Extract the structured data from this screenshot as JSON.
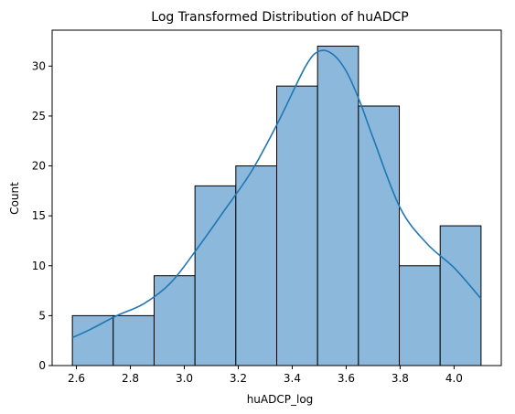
{
  "chart_data": {
    "type": "bar",
    "subtype": "histogram",
    "title": "Log Transformed Distribution of huADCP",
    "xlabel": "huADCP_log",
    "ylabel": "Count",
    "bin_edges": [
      2.585,
      2.7365,
      2.888,
      3.0395,
      3.191,
      3.3425,
      3.494,
      3.6455,
      3.797,
      3.9485,
      4.1
    ],
    "values": [
      5,
      5,
      9,
      18,
      20,
      28,
      32,
      26,
      10,
      14
    ],
    "xlim": [
      2.51,
      4.175
    ],
    "ylim": [
      0,
      33.6
    ],
    "xticks": [
      2.6,
      2.8,
      3.0,
      3.2,
      3.4,
      3.6,
      3.8,
      4.0
    ],
    "xtick_labels": [
      "2.6",
      "2.8",
      "3.0",
      "3.2",
      "3.4",
      "3.6",
      "3.8",
      "4.0"
    ],
    "yticks": [
      0,
      5,
      10,
      15,
      20,
      25,
      30
    ],
    "ytick_labels": [
      "0",
      "5",
      "10",
      "15",
      "20",
      "25",
      "30"
    ],
    "kde": {
      "x": [
        2.585,
        2.65,
        2.75,
        2.85,
        2.95,
        3.05,
        3.15,
        3.25,
        3.35,
        3.45,
        3.5,
        3.55,
        3.6,
        3.65,
        3.7,
        3.8,
        3.9,
        4.0,
        4.1
      ],
      "y": [
        2.8,
        3.6,
        5.0,
        6.2,
        8.3,
        11.8,
        15.6,
        19.5,
        24.5,
        30.0,
        31.5,
        31.2,
        29.5,
        26.5,
        22.8,
        15.8,
        12.2,
        9.8,
        6.7
      ]
    },
    "grid": false,
    "legend": "none",
    "colors": {
      "bar_fill": "#8bb8db",
      "bar_edge": "#000000",
      "kde_line": "#1f77b4"
    }
  }
}
